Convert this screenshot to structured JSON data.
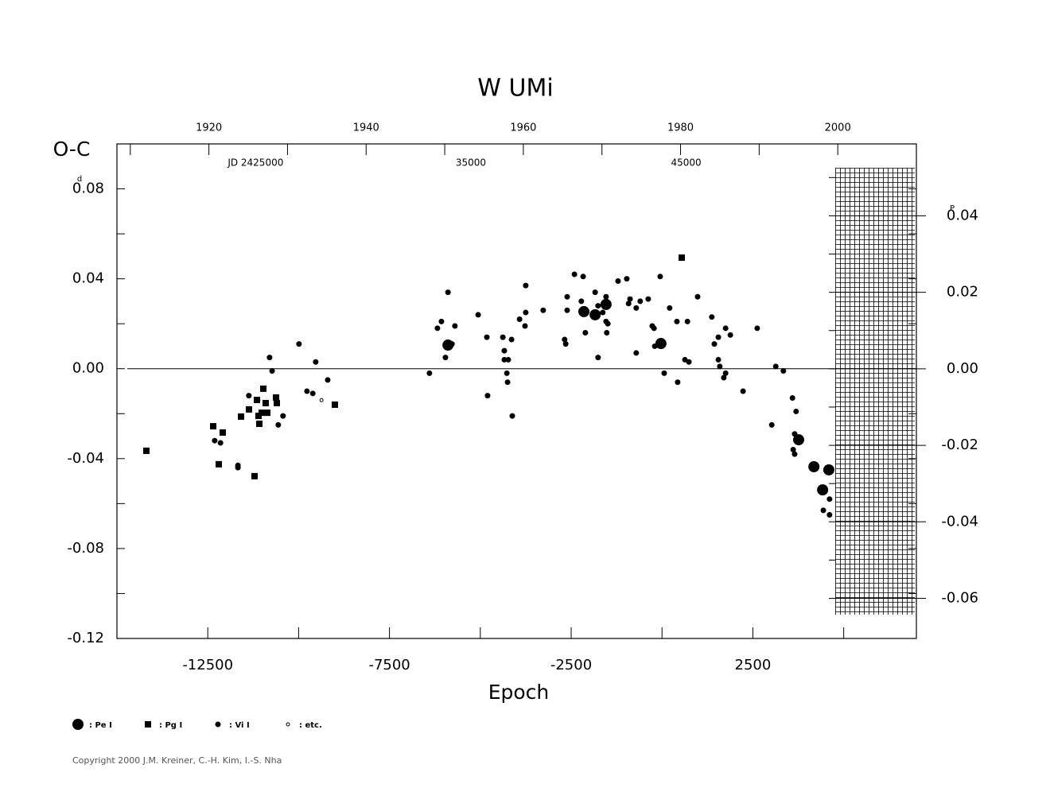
{
  "chart_data": {
    "type": "scatter",
    "title": "W  UMi",
    "x_label": "Epoch",
    "y_label": "O-C",
    "y_unit": "d",
    "y2_unit": "P",
    "xlim": [
      -15000,
      7000
    ],
    "xticks": [
      -12500,
      -7500,
      -2500,
      2500
    ],
    "xticks_minor": [
      -10000,
      -5000,
      0,
      5000
    ],
    "ylim": [
      -0.12,
      0.1
    ],
    "yticks": [
      -0.12,
      -0.08,
      -0.04,
      {
        "value": 0,
        "label": "0.00"
      },
      0.04,
      0.08
    ],
    "yticks_minor": [
      -0.1,
      -0.06,
      -0.02,
      0.02,
      0.06
    ],
    "y2lim": [
      -0.0705,
      0.0588
    ],
    "y2ticks": [
      -0.06,
      -0.04,
      -0.02,
      {
        "value": 0,
        "label": "0.00"
      },
      0.02,
      0.04
    ],
    "y2ticks_minor": [
      -0.05,
      -0.03,
      -0.01,
      0.01,
      0.03,
      0.05
    ],
    "x2lim": [
      1908.3,
      2010.0
    ],
    "x2ticks": [
      1920,
      1940,
      1960,
      1980,
      2000
    ],
    "x2ticks_minor": [
      1910,
      1930,
      1950,
      1970,
      1990
    ],
    "jdlim": [
      2418040,
      2455180
    ],
    "jdticks": [
      {
        "value": 2425000,
        "label": "JD 2425000"
      },
      {
        "value": 2435000,
        "label": "35000"
      },
      {
        "value": 2445000,
        "label": "45000"
      }
    ],
    "series": [
      {
        "name": ": Pe I",
        "color": "#000000",
        "marker": "circle",
        "size": 7,
        "x": [
          -5890,
          -2150,
          -1840,
          -1540,
          -30,
          3760,
          4180,
          4590,
          4420
        ],
        "values": [
          0.0105,
          0.0254,
          0.024,
          0.0286,
          0.0112,
          -0.0316,
          -0.0436,
          -0.045,
          -0.0539
        ]
      },
      {
        "name": ": Pg I",
        "color": "#000000",
        "marker": "square",
        "size": 8,
        "x": [
          -14190,
          -12351,
          -12089,
          -12198,
          -11585,
          -11366,
          -11213,
          -11147,
          -11104,
          -11016,
          -10972,
          -10907,
          -10863,
          -11082,
          -10622,
          -10600,
          -9002,
          542
        ],
        "values": [
          -0.0365,
          -0.0256,
          -0.0284,
          -0.0425,
          -0.0213,
          -0.0181,
          -0.0478,
          -0.0139,
          -0.021,
          -0.0196,
          -0.0089,
          -0.0153,
          -0.0196,
          -0.0245,
          -0.0128,
          -0.0153,
          -0.016,
          0.0494
        ]
      },
      {
        "name": ": Vi I",
        "color": "#000000",
        "marker": "circle",
        "size": 3.5,
        "x": [
          -12310,
          -12150,
          -11670,
          -11670,
          -11370,
          -11130,
          -10800,
          -10730,
          -10560,
          -10430,
          -9990,
          -9770,
          -9610,
          -9530,
          -9200,
          -6400,
          -6180,
          -6070,
          -5960,
          -5890,
          -5780,
          -5700,
          -5060,
          -4820,
          -4800,
          -4380,
          -4340,
          -4340,
          -4270,
          -4250,
          -4230,
          -4140,
          -4120,
          -3920,
          -3770,
          -3750,
          -3750,
          -3270,
          -2680,
          -2650,
          -2610,
          -2610,
          -2410,
          -2220,
          -2170,
          -2110,
          -1840,
          -1760,
          -1760,
          -1630,
          -1540,
          -1540,
          -1520,
          -1490,
          -1210,
          -970,
          -920,
          -880,
          -710,
          -710,
          -600,
          -380,
          -270,
          -220,
          -200,
          -50,
          60,
          210,
          410,
          430,
          630,
          740,
          700,
          980,
          1370,
          1440,
          1550,
          1550,
          1590,
          1700,
          1750,
          1750,
          1880,
          2230,
          2620,
          3020,
          3130,
          3340,
          3590,
          3690,
          3610,
          3650,
          3650,
          4440,
          4610,
          4610
        ],
        "values": [
          -0.032,
          -0.033,
          -0.043,
          -0.044,
          -0.012,
          -0.014,
          0.005,
          -0.001,
          -0.025,
          -0.021,
          0.011,
          -0.01,
          -0.011,
          0.003,
          -0.005,
          -0.002,
          0.018,
          0.021,
          0.005,
          0.034,
          0.011,
          0.019,
          0.024,
          0.014,
          -0.012,
          0.014,
          0.008,
          0.004,
          -0.002,
          -0.006,
          0.004,
          0.013,
          -0.021,
          0.022,
          0.019,
          0.025,
          0.037,
          0.026,
          0.013,
          0.011,
          0.032,
          0.026,
          0.042,
          0.03,
          0.041,
          0.016,
          0.034,
          0.005,
          0.028,
          0.025,
          0.032,
          0.021,
          0.016,
          0.02,
          0.039,
          0.04,
          0.029,
          0.031,
          0.007,
          0.027,
          0.03,
          0.031,
          0.019,
          0.018,
          0.01,
          0.041,
          -0.002,
          0.027,
          0.021,
          -0.006,
          0.004,
          0.003,
          0.021,
          0.032,
          0.023,
          0.011,
          0.014,
          0.004,
          0.001,
          -0.004,
          -0.002,
          0.018,
          0.015,
          -0.01,
          0.018,
          -0.025,
          0.001,
          -0.001,
          -0.013,
          -0.019,
          -0.036,
          -0.038,
          -0.029,
          -0.063,
          -0.058,
          -0.065
        ]
      },
      {
        "name": ": etc.",
        "color": "#000000",
        "marker": "open-circle",
        "size": 2,
        "x": [
          -9370
        ],
        "values": [
          -0.014
        ]
      }
    ]
  },
  "copyright": "Copyright 2000 J.M. Kreiner, C.-H. Kim, I.-S. Nha"
}
